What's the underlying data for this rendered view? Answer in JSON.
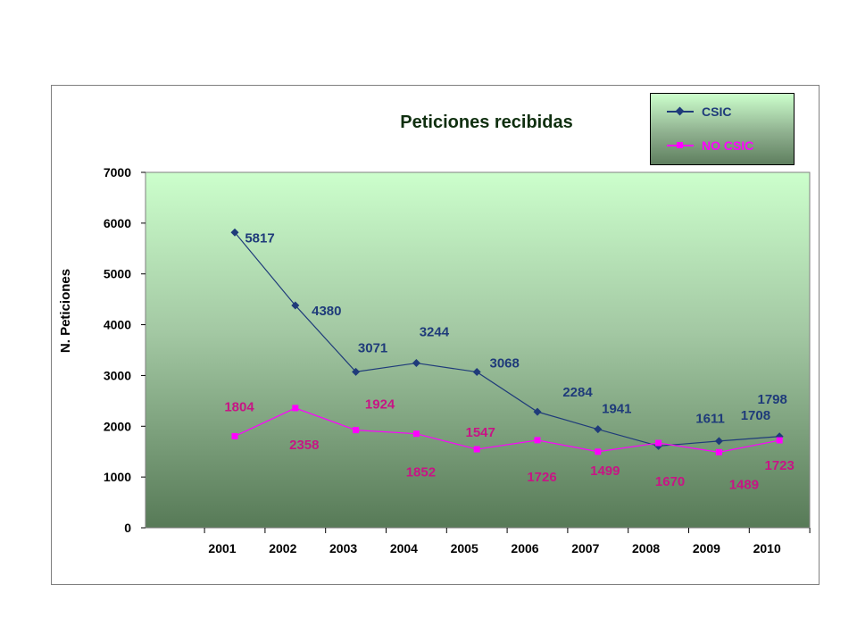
{
  "chart_data": {
    "type": "line",
    "title": "Peticiones recibidas",
    "xlabel": "",
    "ylabel": "N. Peticiones",
    "ylim": [
      0,
      7000
    ],
    "yticks": [
      "0",
      "1000",
      "2000",
      "3000",
      "4000",
      "5000",
      "6000",
      "7000"
    ],
    "categories": [
      "2001",
      "2002",
      "2003",
      "2004",
      "2005",
      "2006",
      "2007",
      "2008",
      "2009",
      "2010"
    ],
    "legend_position": "top-right",
    "series": [
      {
        "name": "CSIC",
        "color": "#1f3b7a",
        "marker": "diamond",
        "values": [
          5817,
          4380,
          3071,
          3244,
          3068,
          2284,
          1941,
          1611,
          1708,
          1798
        ],
        "labels": [
          "5817",
          "4380",
          "3071",
          "3244",
          "3068",
          "2284",
          "1941",
          "1611",
          "1708",
          "1798"
        ]
      },
      {
        "name": "NO CSIC",
        "color": "#ff00ff",
        "label_color": "#c71585",
        "marker": "square",
        "values": [
          1804,
          2358,
          1924,
          1852,
          1547,
          1726,
          1499,
          1670,
          1489,
          1723
        ],
        "labels": [
          "1804",
          "2358",
          "1924",
          "1852",
          "1547",
          "1726",
          "1499",
          "1670",
          "1489",
          "1723"
        ]
      }
    ]
  }
}
